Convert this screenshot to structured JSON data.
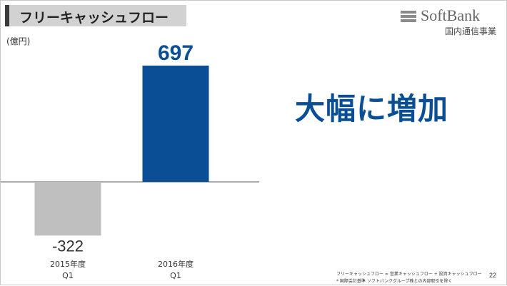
{
  "slide": {
    "title": "フリーキャッシュフロー",
    "logo_name": "SoftBank",
    "logo_subtitle": "国内通信事業",
    "unit": "(億円)",
    "headline": "大幅に増加",
    "footnote_1": "フリーキャッシュフロー = 営業キャッシュフロー + 投資キャッシュフロー",
    "footnote_2": "* 国際会計基準 ソフトバンクグループ株との内部取引を除く",
    "page_number": "22"
  },
  "colors": {
    "bar_positive": "#0a4f96",
    "bar_negative": "#bfbfbf",
    "headline": "#0a4f96",
    "positive_label": "#0a4f96",
    "negative_label": "#333333"
  },
  "chart_data": {
    "type": "bar",
    "categories": [
      "2015年度\nQ1",
      "2016年度\nQ1"
    ],
    "values": [
      -322,
      697
    ],
    "data_labels": [
      "-322",
      "697"
    ],
    "ylabel": "(億円)",
    "grid": false,
    "legend": "none"
  }
}
